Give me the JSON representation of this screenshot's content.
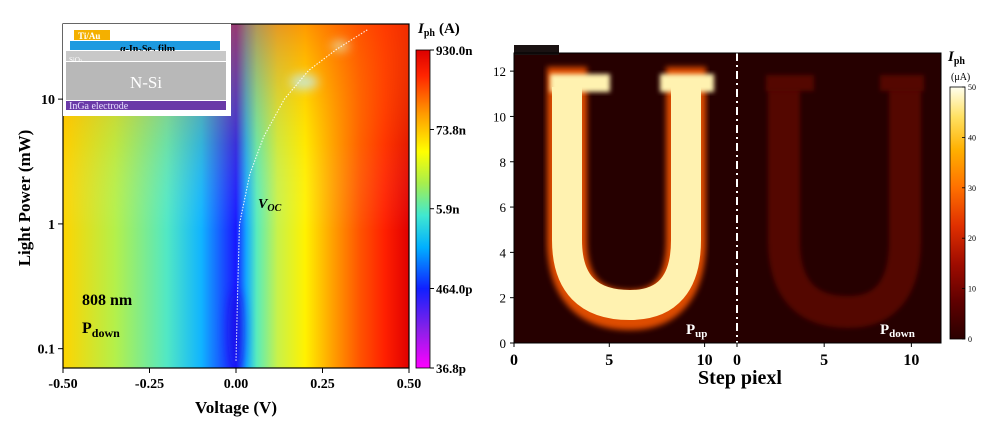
{
  "chart_data": [
    {
      "type": "heatmap",
      "xlabel": "Voltage (V)",
      "ylabel": "Light Power (mW)",
      "x_ticks": [
        "-0.50",
        "-0.25",
        "0.00",
        "0.25",
        "0.50"
      ],
      "x_tick_values": [
        -0.5,
        -0.25,
        0.0,
        0.25,
        0.5
      ],
      "y_ticks": [
        "0.1",
        "1",
        "10"
      ],
      "y_tick_values": [
        0.1,
        1,
        10
      ],
      "xlim": [
        -0.5,
        0.5
      ],
      "ylim": [
        0.07,
        40
      ],
      "y_scale": "log",
      "colorbar": {
        "title": "I",
        "title_sub": "ph",
        "unit": "(A)",
        "labels": [
          "930.0n",
          "73.8n",
          "5.9n",
          "464.0p",
          "36.8p"
        ],
        "values": [
          9.3e-07,
          7.38e-08,
          5.9e-09,
          4.64e-10,
          3.68e-11
        ],
        "scale": "log",
        "colors": [
          "#ff00ff",
          "#7a1fe0",
          "#1020ff",
          "#00b0ff",
          "#40e8d0",
          "#a6ee4e",
          "#ffff00",
          "#ff9a00",
          "#ff2400",
          "#dd0000"
        ]
      },
      "voc_curve": {
        "label": "V",
        "label_sub": "OC",
        "points": [
          [
            0.0,
            0.08
          ],
          [
            0.005,
            0.3
          ],
          [
            0.01,
            1.0
          ],
          [
            0.04,
            2.5
          ],
          [
            0.08,
            5.0
          ],
          [
            0.14,
            10.0
          ],
          [
            0.21,
            17.0
          ],
          [
            0.29,
            25.0
          ],
          [
            0.38,
            36.0
          ]
        ]
      },
      "annotations": {
        "wavelength": "808 nm",
        "polarization": "P",
        "polarization_sub": "down"
      },
      "inset": {
        "layers": [
          "Ti/Au",
          "α-In2Se3 film",
          "SiO2",
          "N-Si",
          "InGa electrode"
        ],
        "top_contact": "Ti/Au",
        "film_prefix": "α-In",
        "film_sub1": "2",
        "film_mid": "Se",
        "film_sub2": "3",
        "film_suffix": " film",
        "oxide": "SiO",
        "oxide_sub": "2",
        "substrate": "N-Si",
        "bottom_electrode": "InGa electrode"
      }
    },
    {
      "type": "heatmap",
      "xlabel": "Step piexl",
      "x_ticks_left": [
        "0",
        "5",
        "10"
      ],
      "x_ticks_right": [
        "0",
        "5",
        "10"
      ],
      "x_tick_values": [
        0,
        5,
        10
      ],
      "y_ticks": [
        "0",
        "2",
        "4",
        "6",
        "8",
        "10",
        "12"
      ],
      "y_tick_values": [
        0,
        2,
        4,
        6,
        8,
        10,
        12
      ],
      "ylim": [
        0,
        12.8
      ],
      "panels": [
        {
          "label": "P",
          "label_sub": "up",
          "pattern": "U",
          "xlim": [
            0,
            11.7
          ],
          "peak_intensity": 50
        },
        {
          "label": "P",
          "label_sub": "down",
          "pattern": "U",
          "xlim": [
            0,
            11.7
          ],
          "peak_intensity": 7
        }
      ],
      "colorbar": {
        "title": "I",
        "title_sub": "ph",
        "unit": "(μA)",
        "labels": [
          "50",
          "40",
          "30",
          "20",
          "10",
          "0"
        ],
        "values": [
          50,
          40,
          30,
          20,
          10,
          0
        ],
        "range": [
          0,
          50
        ],
        "colors": [
          "#2a0000",
          "#4a0000",
          "#7a0500",
          "#b01000",
          "#e03000",
          "#ff6a00",
          "#ffa000",
          "#ffd040",
          "#fff6a8",
          "#ffffee"
        ]
      }
    }
  ]
}
